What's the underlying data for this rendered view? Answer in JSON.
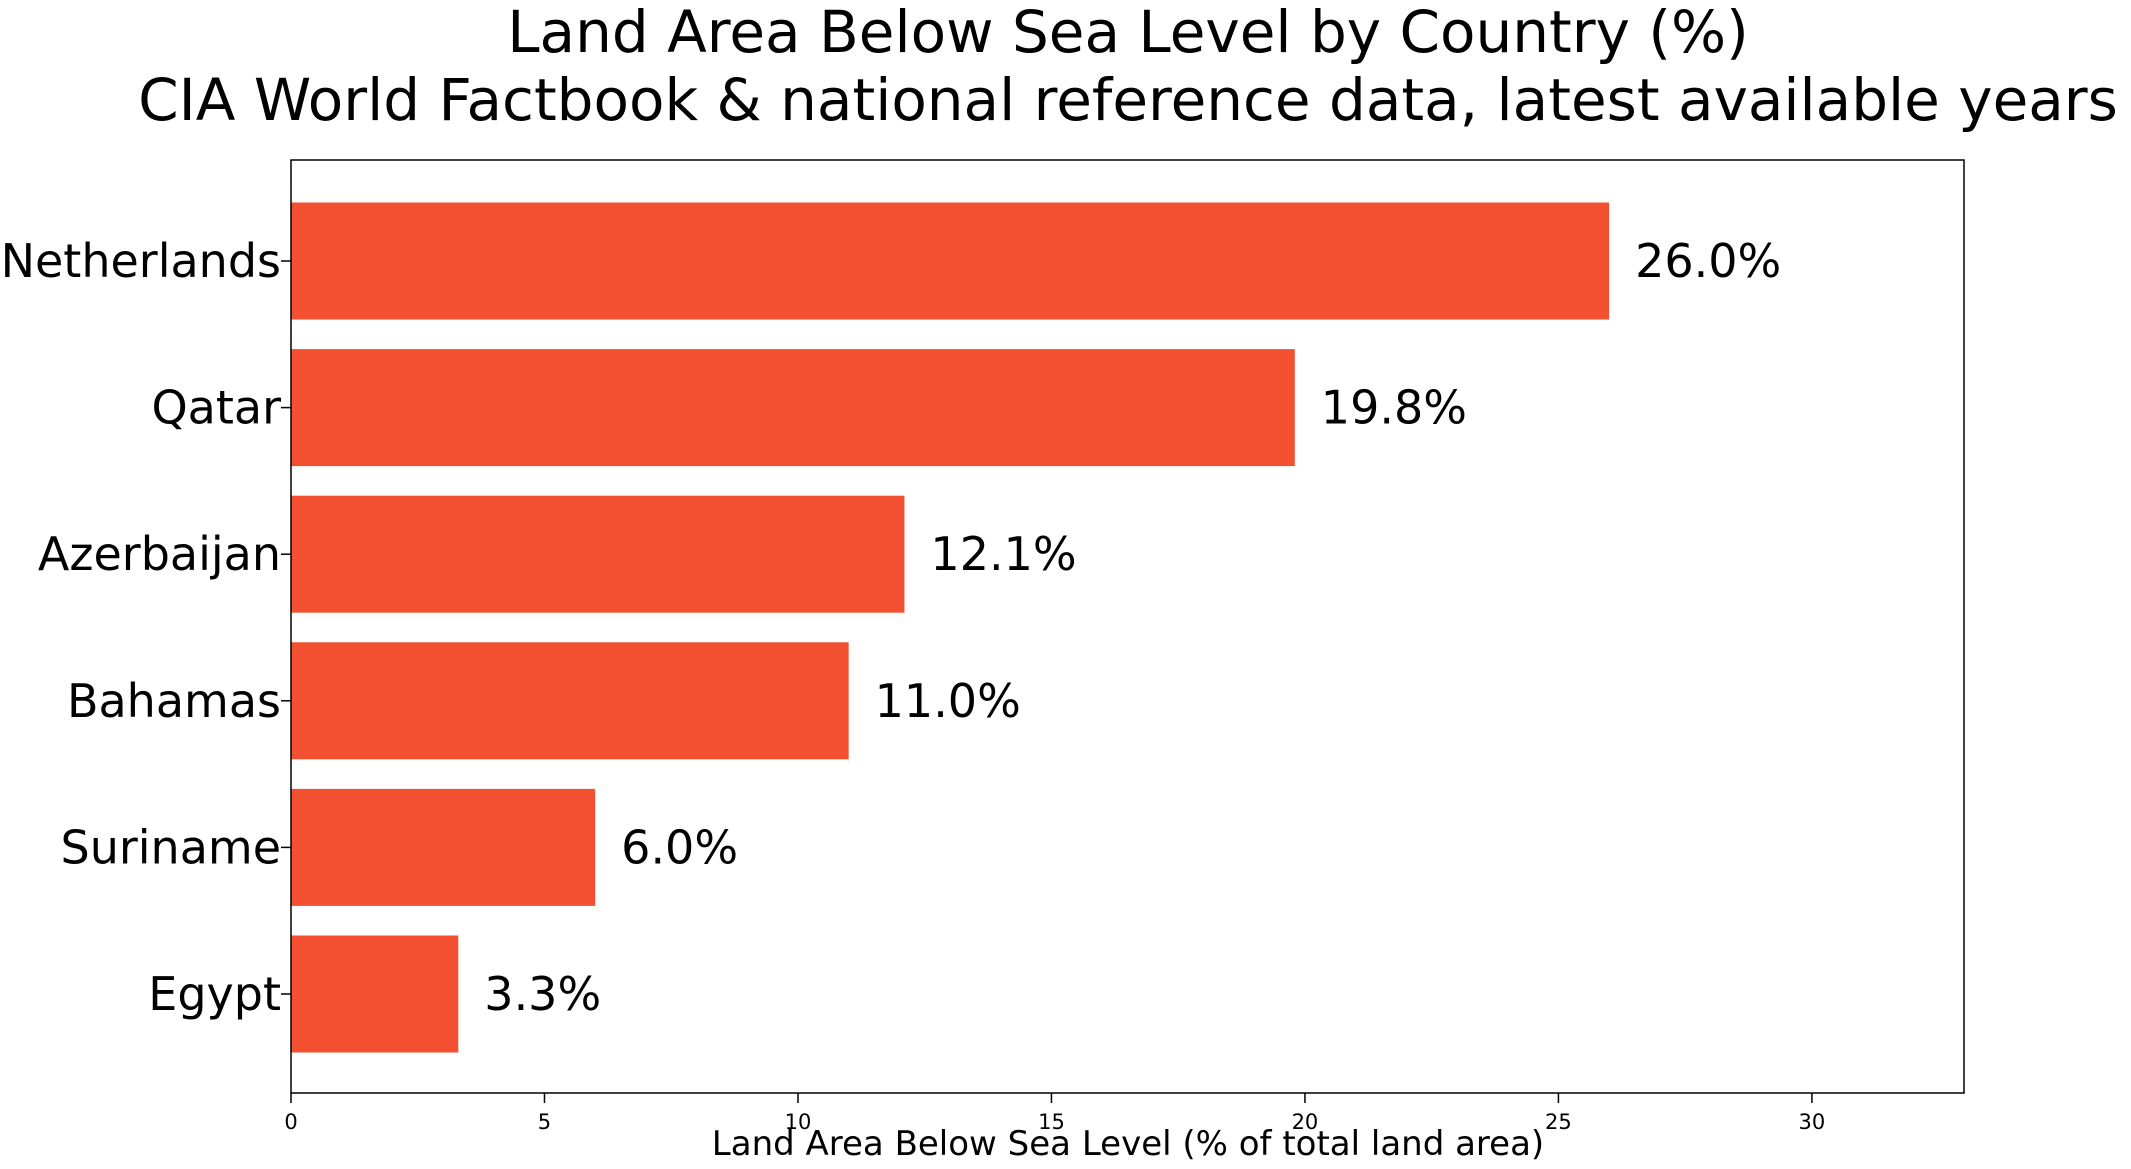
{
  "chart_data": {
    "type": "bar",
    "orientation": "horizontal",
    "title": "Land Area Below Sea Level by Country (%)",
    "subtitle": "CIA World Factbook & national reference data, latest available years",
    "xlabel": "Land Area Below Sea Level (% of total land area)",
    "ylabel": "",
    "categories": [
      "Netherlands",
      "Qatar",
      "Azerbaijan",
      "Bahamas",
      "Suriname",
      "Egypt"
    ],
    "values": [
      26.0,
      19.8,
      12.1,
      11.0,
      6.0,
      3.3
    ],
    "value_labels": [
      "26.0%",
      "19.8%",
      "12.1%",
      "11.0%",
      "6.0%",
      "3.3%"
    ],
    "xlim": [
      0,
      33
    ],
    "xticks": [
      0,
      5,
      10,
      15,
      20,
      25,
      30
    ],
    "xtick_labels": [
      "0",
      "5",
      "10",
      "15",
      "20",
      "25",
      "30"
    ],
    "grid": false,
    "bar_color": "#F25030"
  }
}
